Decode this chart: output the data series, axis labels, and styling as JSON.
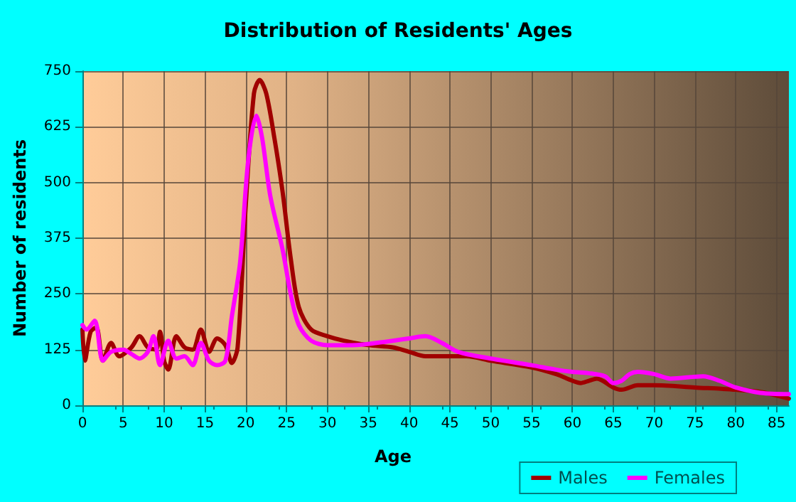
{
  "chart_data": {
    "type": "line",
    "title": "Distribution of Residents' Ages",
    "xlabel": "Age",
    "ylabel": "Number of residents",
    "xlim": [
      0,
      86.5
    ],
    "xticks": [
      0,
      5,
      10,
      15,
      20,
      25,
      30,
      35,
      40,
      45,
      50,
      55,
      60,
      65,
      70,
      75,
      80,
      85
    ],
    "ylim": [
      0,
      750
    ],
    "yticks": [
      0,
      125,
      250,
      375,
      500,
      625,
      750
    ],
    "grid": true,
    "legend": "bottom right",
    "marker": "none",
    "line_style": "solid",
    "series": [
      {
        "name": "Males",
        "color": "#a00000",
        "x": [
          0,
          0.3,
          1,
          1.7,
          2.5,
          3.5,
          4.5,
          6,
          7,
          8,
          9,
          9.5,
          10,
          10.5,
          11.5,
          12.5,
          13.5,
          14.5,
          15.5,
          16.5,
          17.5,
          18.3,
          19,
          20,
          21,
          21.7,
          22.5,
          23.5,
          24.5,
          25.5,
          26.5,
          28,
          30,
          32,
          35,
          38,
          40,
          42,
          45,
          47,
          50,
          55,
          58,
          60,
          61,
          62,
          63,
          65,
          66,
          68,
          70,
          75,
          80,
          83,
          86.5
        ],
        "values": [
          170,
          100,
          165,
          175,
          100,
          140,
          110,
          130,
          155,
          130,
          125,
          165,
          100,
          80,
          155,
          130,
          125,
          170,
          120,
          150,
          135,
          95,
          130,
          450,
          700,
          730,
          700,
          600,
          480,
          330,
          220,
          170,
          155,
          145,
          135,
          130,
          120,
          110,
          110,
          110,
          100,
          85,
          70,
          55,
          50,
          55,
          60,
          40,
          35,
          45,
          45,
          40,
          35,
          30,
          15
        ]
      },
      {
        "name": "Females",
        "color": "#ff00ff",
        "x": [
          0,
          0.5,
          1.5,
          2.5,
          3.5,
          5,
          6,
          7,
          8,
          8.7,
          9.5,
          10.5,
          11.5,
          12.5,
          13.5,
          14.5,
          15.5,
          16.5,
          17.5,
          18.3,
          19.3,
          20.3,
          21.3,
          22,
          23,
          24.5,
          25.5,
          26.5,
          28,
          30,
          33,
          36,
          40,
          42,
          44,
          46,
          50,
          55,
          58,
          60,
          62,
          64,
          65,
          66,
          67,
          68,
          70,
          72,
          76,
          78,
          80,
          83,
          86.5
        ],
        "values": [
          180,
          170,
          190,
          100,
          120,
          125,
          115,
          105,
          120,
          155,
          90,
          145,
          105,
          110,
          90,
          140,
          100,
          90,
          100,
          200,
          320,
          550,
          650,
          600,
          470,
          350,
          250,
          180,
          145,
          135,
          135,
          140,
          150,
          155,
          140,
          120,
          105,
          90,
          80,
          75,
          72,
          65,
          50,
          55,
          70,
          75,
          70,
          60,
          65,
          55,
          40,
          28,
          25
        ]
      }
    ]
  }
}
